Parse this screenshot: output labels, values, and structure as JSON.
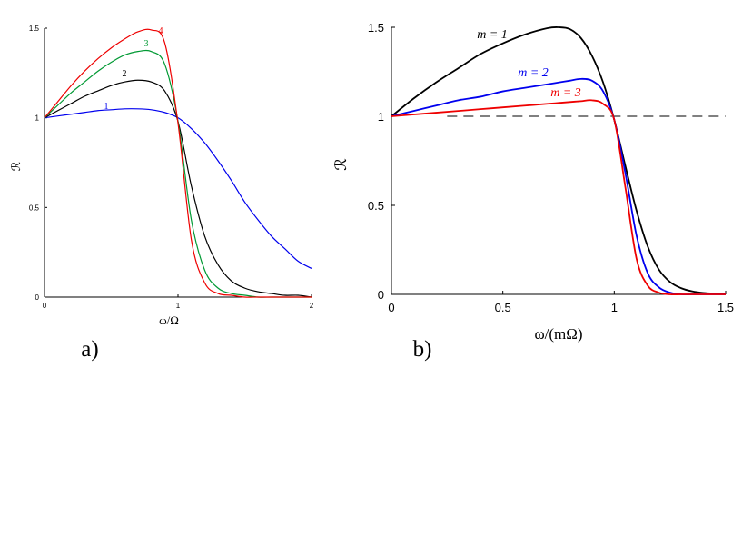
{
  "chart_data": [
    {
      "type": "line",
      "panel_label": "a)",
      "xlabel": "ω/Ω",
      "ylabel": "ℛ",
      "xlim": [
        0,
        2
      ],
      "ylim": [
        0,
        1.5
      ],
      "x_ticks": [
        "0",
        "1",
        "2"
      ],
      "y_ticks": [
        "0",
        "0.5",
        "1",
        "1.5"
      ],
      "x": [
        0,
        0.1,
        0.2,
        0.3,
        0.4,
        0.5,
        0.6,
        0.7,
        0.8,
        0.9,
        1.0,
        1.1,
        1.2,
        1.3,
        1.4,
        1.5,
        1.6,
        1.7,
        1.8,
        1.9,
        2.0
      ],
      "series": [
        {
          "name": "1",
          "label": "1",
          "color": "#0000ee",
          "values": [
            1.0,
            1.01,
            1.02,
            1.03,
            1.04,
            1.045,
            1.05,
            1.05,
            1.045,
            1.03,
            1.0,
            0.94,
            0.86,
            0.76,
            0.65,
            0.53,
            0.43,
            0.34,
            0.27,
            0.2,
            0.16
          ]
        },
        {
          "name": "2",
          "label": "2",
          "color": "#000000",
          "values": [
            1.0,
            1.04,
            1.08,
            1.12,
            1.15,
            1.18,
            1.2,
            1.21,
            1.2,
            1.15,
            0.98,
            0.62,
            0.34,
            0.18,
            0.09,
            0.05,
            0.03,
            0.02,
            0.01,
            0.01,
            0.0
          ]
        },
        {
          "name": "3",
          "label": "3",
          "color": "#009933",
          "values": [
            1.0,
            1.07,
            1.14,
            1.2,
            1.26,
            1.31,
            1.35,
            1.37,
            1.37,
            1.3,
            0.98,
            0.43,
            0.15,
            0.05,
            0.02,
            0.01,
            0.0,
            0.0,
            0.0,
            0.0,
            0.0
          ]
        },
        {
          "name": "4",
          "label": "4",
          "color": "#ee0000",
          "values": [
            1.0,
            1.09,
            1.18,
            1.26,
            1.33,
            1.39,
            1.44,
            1.48,
            1.49,
            1.42,
            0.97,
            0.32,
            0.08,
            0.02,
            0.01,
            0.0,
            0.0,
            0.0,
            0.0,
            0.0,
            0.0
          ]
        }
      ]
    },
    {
      "type": "line",
      "panel_label": "b)",
      "xlabel": "ω/(mΩ)",
      "ylabel": "ℛ",
      "xlim": [
        0,
        1.5
      ],
      "ylim": [
        0,
        1.5
      ],
      "x_ticks": [
        "0",
        "0.5",
        "1",
        "1.5"
      ],
      "y_ticks": [
        "0",
        "0.5",
        "1",
        "1.5"
      ],
      "reference_line": {
        "y": 1,
        "style": "dashed",
        "from_x": 0.25
      },
      "x": [
        0,
        0.1,
        0.2,
        0.3,
        0.4,
        0.5,
        0.6,
        0.7,
        0.75,
        0.8,
        0.85,
        0.9,
        0.95,
        1.0,
        1.05,
        1.1,
        1.15,
        1.2,
        1.25,
        1.3,
        1.35,
        1.4,
        1.45,
        1.5
      ],
      "series": [
        {
          "name": "m = 1",
          "label": "m = 1",
          "color": "#000000",
          "values": [
            1.0,
            1.1,
            1.19,
            1.27,
            1.35,
            1.41,
            1.46,
            1.495,
            1.5,
            1.49,
            1.44,
            1.34,
            1.19,
            0.98,
            0.72,
            0.47,
            0.27,
            0.14,
            0.07,
            0.035,
            0.017,
            0.008,
            0.004,
            0.002
          ]
        },
        {
          "name": "m = 2",
          "label": "m = 2",
          "color": "#0000ee",
          "values": [
            1.0,
            1.03,
            1.06,
            1.09,
            1.11,
            1.14,
            1.16,
            1.18,
            1.19,
            1.2,
            1.21,
            1.2,
            1.14,
            0.98,
            0.68,
            0.33,
            0.12,
            0.04,
            0.01,
            0.0,
            0.0,
            0.0,
            0.0,
            0.0
          ]
        },
        {
          "name": "m = 3",
          "label": "m = 3",
          "color": "#ee0000",
          "values": [
            1.0,
            1.01,
            1.02,
            1.03,
            1.04,
            1.05,
            1.06,
            1.07,
            1.075,
            1.08,
            1.085,
            1.09,
            1.07,
            0.98,
            0.6,
            0.2,
            0.05,
            0.01,
            0.0,
            0.0,
            0.0,
            0.0,
            0.0,
            0.0
          ]
        }
      ]
    }
  ]
}
